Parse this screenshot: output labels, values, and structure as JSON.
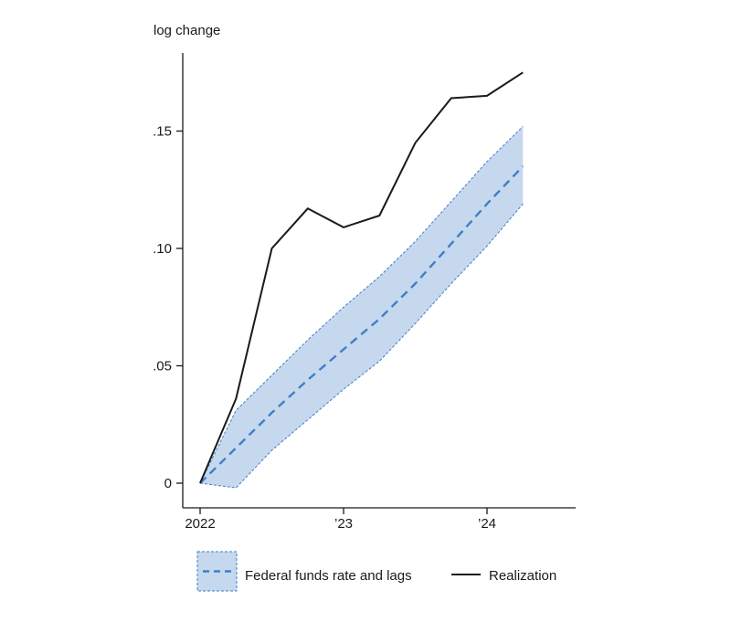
{
  "chart_data": {
    "type": "line",
    "ylabel": "log change",
    "x_ticks": [
      {
        "x": 2022.0,
        "label": "2022"
      },
      {
        "x": 2023.0,
        "label": "’23"
      },
      {
        "x": 2024.0,
        "label": "’24"
      }
    ],
    "y_ticks": [
      {
        "y": 0.0,
        "label": "0"
      },
      {
        "y": 0.05,
        "label": ".05"
      },
      {
        "y": 0.1,
        "label": ".10"
      },
      {
        "y": 0.15,
        "label": ".15"
      }
    ],
    "xlim": [
      2022.0,
      2024.6
    ],
    "ylim": [
      -0.012,
      0.183
    ],
    "grid": false,
    "legend_position": "bottom",
    "series": [
      {
        "name": "Federal funds rate and lags",
        "style": "dashed-with-band",
        "color": "#3f7ec6",
        "band_color": "#c5d8ee",
        "x": [
          2022.0,
          2022.25,
          2022.5,
          2022.75,
          2023.0,
          2023.25,
          2023.5,
          2023.75,
          2024.0,
          2024.25
        ],
        "values": [
          0.0,
          0.015,
          0.03,
          0.044,
          0.057,
          0.07,
          0.085,
          0.102,
          0.119,
          0.135
        ],
        "upper": [
          0.0,
          0.031,
          0.046,
          0.061,
          0.075,
          0.088,
          0.103,
          0.12,
          0.137,
          0.152
        ],
        "lower": [
          0.0,
          -0.002,
          0.014,
          0.027,
          0.04,
          0.052,
          0.068,
          0.085,
          0.101,
          0.119
        ]
      },
      {
        "name": "Realization",
        "style": "solid",
        "color": "#1a1a1a",
        "x": [
          2022.0,
          2022.25,
          2022.5,
          2022.75,
          2023.0,
          2023.25,
          2023.5,
          2023.75,
          2024.0,
          2024.25
        ],
        "values": [
          0.0,
          0.036,
          0.1,
          0.117,
          0.109,
          0.114,
          0.145,
          0.164,
          0.165,
          0.175
        ]
      }
    ]
  }
}
